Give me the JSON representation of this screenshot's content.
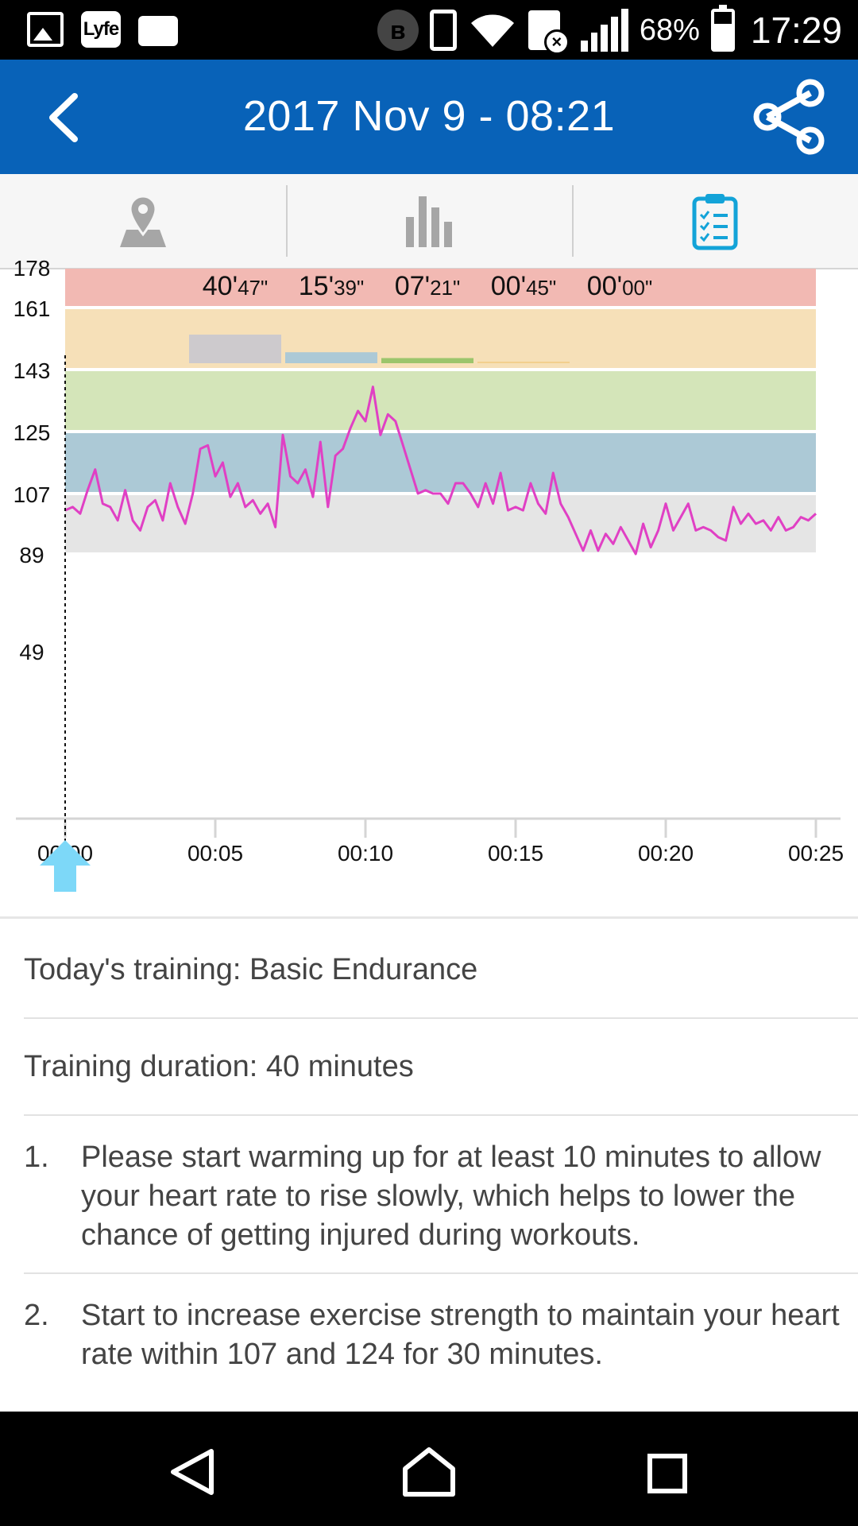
{
  "status_bar": {
    "notification_icons": [
      "gallery-icon",
      "lyfe-app-icon",
      "folder-icon"
    ],
    "lyfe_label": "Lyfe",
    "battery_percent": "68%",
    "battery_level": 0.68,
    "time": "17:29"
  },
  "app_bar": {
    "title": "2017 Nov 9 - 08:21",
    "back_icon": "back-chevron-icon",
    "share_icon": "share-icon"
  },
  "tabs": [
    {
      "icon": "map-pin-icon",
      "selected": false
    },
    {
      "icon": "bar-chart-icon",
      "selected": false
    },
    {
      "icon": "clipboard-checklist-icon",
      "selected": true
    }
  ],
  "colors": {
    "app_bar": "#0862b8",
    "accent": "#13a3d8",
    "hr_line": "#e040c4",
    "zone_max": "#f2b9b3",
    "zone_anaerobic": "#f6e0b8",
    "zone_aerobic": "#d4e5b9",
    "zone_fat_burn": "#acc9d6",
    "zone_warmup": "#e5e5e5"
  },
  "chart_data": {
    "type": "line",
    "xlabel": "",
    "ylabel": "",
    "x_ticks": [
      "00:00",
      "00:05",
      "00:10",
      "00:15",
      "00:20",
      "00:25"
    ],
    "xlim": [
      0,
      25
    ],
    "y_ticks": [
      178,
      161,
      143,
      125,
      107,
      89,
      49
    ],
    "zones": [
      {
        "from": 89,
        "to": 107,
        "color": "#e5e5e5"
      },
      {
        "from": 107,
        "to": 125,
        "color": "#acc9d6"
      },
      {
        "from": 125,
        "to": 143,
        "color": "#d4e5b9"
      },
      {
        "from": 143,
        "to": 161,
        "color": "#f6e0b8"
      },
      {
        "from": 161,
        "to": 178,
        "color": "#f2b9b3"
      }
    ],
    "zone_times": [
      {
        "label_main": "40'",
        "label_sec": "47\"",
        "minutes": 40.78,
        "color": "#cdcacd"
      },
      {
        "label_main": "15'",
        "label_sec": "39\"",
        "minutes": 15.65,
        "color": "#acc9d6"
      },
      {
        "label_main": "07'",
        "label_sec": "21\"",
        "minutes": 7.35,
        "color": "#9cc56c"
      },
      {
        "label_main": "00'",
        "label_sec": "45\"",
        "minutes": 0.75,
        "color": "#f2d08e"
      },
      {
        "label_main": "00'",
        "label_sec": "00\"",
        "minutes": 0,
        "color": "#f2b9b3"
      }
    ],
    "cursor_x": 0,
    "series": [
      {
        "x": [
          0,
          0.25,
          0.5,
          0.75,
          1.0,
          1.25,
          1.5,
          1.75,
          2.0,
          2.25,
          2.5,
          2.75,
          3.0,
          3.25,
          3.5,
          3.75,
          4.0,
          4.25,
          4.5,
          4.75,
          5.0,
          5.25,
          5.5,
          5.75,
          6.0,
          6.25,
          6.5,
          6.75,
          7.0,
          7.25,
          7.5,
          7.75,
          8.0,
          8.25,
          8.5,
          8.75,
          9.0,
          9.25,
          9.5,
          9.75,
          10.0,
          10.25,
          10.5,
          10.75,
          11.0,
          11.25,
          11.5,
          11.75,
          12.0,
          12.25,
          12.5,
          12.75,
          13.0,
          13.25,
          13.5,
          13.75,
          14.0,
          14.25,
          14.5,
          14.75,
          15.0,
          15.25,
          15.5,
          15.75,
          16.0,
          16.25,
          16.5,
          16.75,
          17.0,
          17.25,
          17.5,
          17.75,
          18.0,
          18.25,
          18.5,
          18.75,
          19.0,
          19.25,
          19.5,
          19.75,
          20.0,
          20.25,
          20.5,
          20.75,
          21.0,
          21.25,
          21.5,
          21.75,
          22.0,
          22.25,
          22.5,
          22.75,
          23.0,
          23.25,
          23.5,
          23.75,
          24.0,
          24.25,
          24.5,
          24.75,
          25.0
        ],
        "values": [
          102,
          103,
          101,
          108,
          114,
          104,
          103,
          99,
          108,
          99,
          96,
          103,
          105,
          99,
          110,
          103,
          98,
          107,
          120,
          121,
          112,
          116,
          106,
          110,
          103,
          105,
          101,
          104,
          97,
          124,
          112,
          110,
          114,
          106,
          122,
          103,
          118,
          120,
          126,
          131,
          128,
          138,
          124,
          130,
          128,
          121,
          114,
          107,
          108,
          107,
          107,
          104,
          110,
          110,
          107,
          103,
          110,
          104,
          113,
          102,
          103,
          102,
          110,
          104,
          101,
          113,
          104,
          100,
          95,
          90,
          96,
          90,
          95,
          92,
          97,
          93,
          89,
          98,
          91,
          96,
          104,
          96,
          100,
          104,
          96,
          97,
          96,
          94,
          93,
          103,
          98,
          101,
          98,
          99,
          96,
          100,
          96,
          97,
          100,
          99,
          101
        ]
      }
    ]
  },
  "training": {
    "todays_training": "Today's training: Basic Endurance",
    "duration": "Training duration: 40 minutes",
    "steps": [
      {
        "num": "1.",
        "text": "Please start warming up for at least 10 minutes to allow your heart rate to rise slowly, which helps to lower the chance of getting injured during workouts."
      },
      {
        "num": "2.",
        "text": "Start to increase exercise strength to maintain your heart rate within 107 and 124 for 30 minutes."
      }
    ]
  },
  "nav_bar": {
    "back_icon": "nav-back-icon",
    "home_icon": "nav-home-icon",
    "recents_icon": "nav-recents-icon"
  }
}
